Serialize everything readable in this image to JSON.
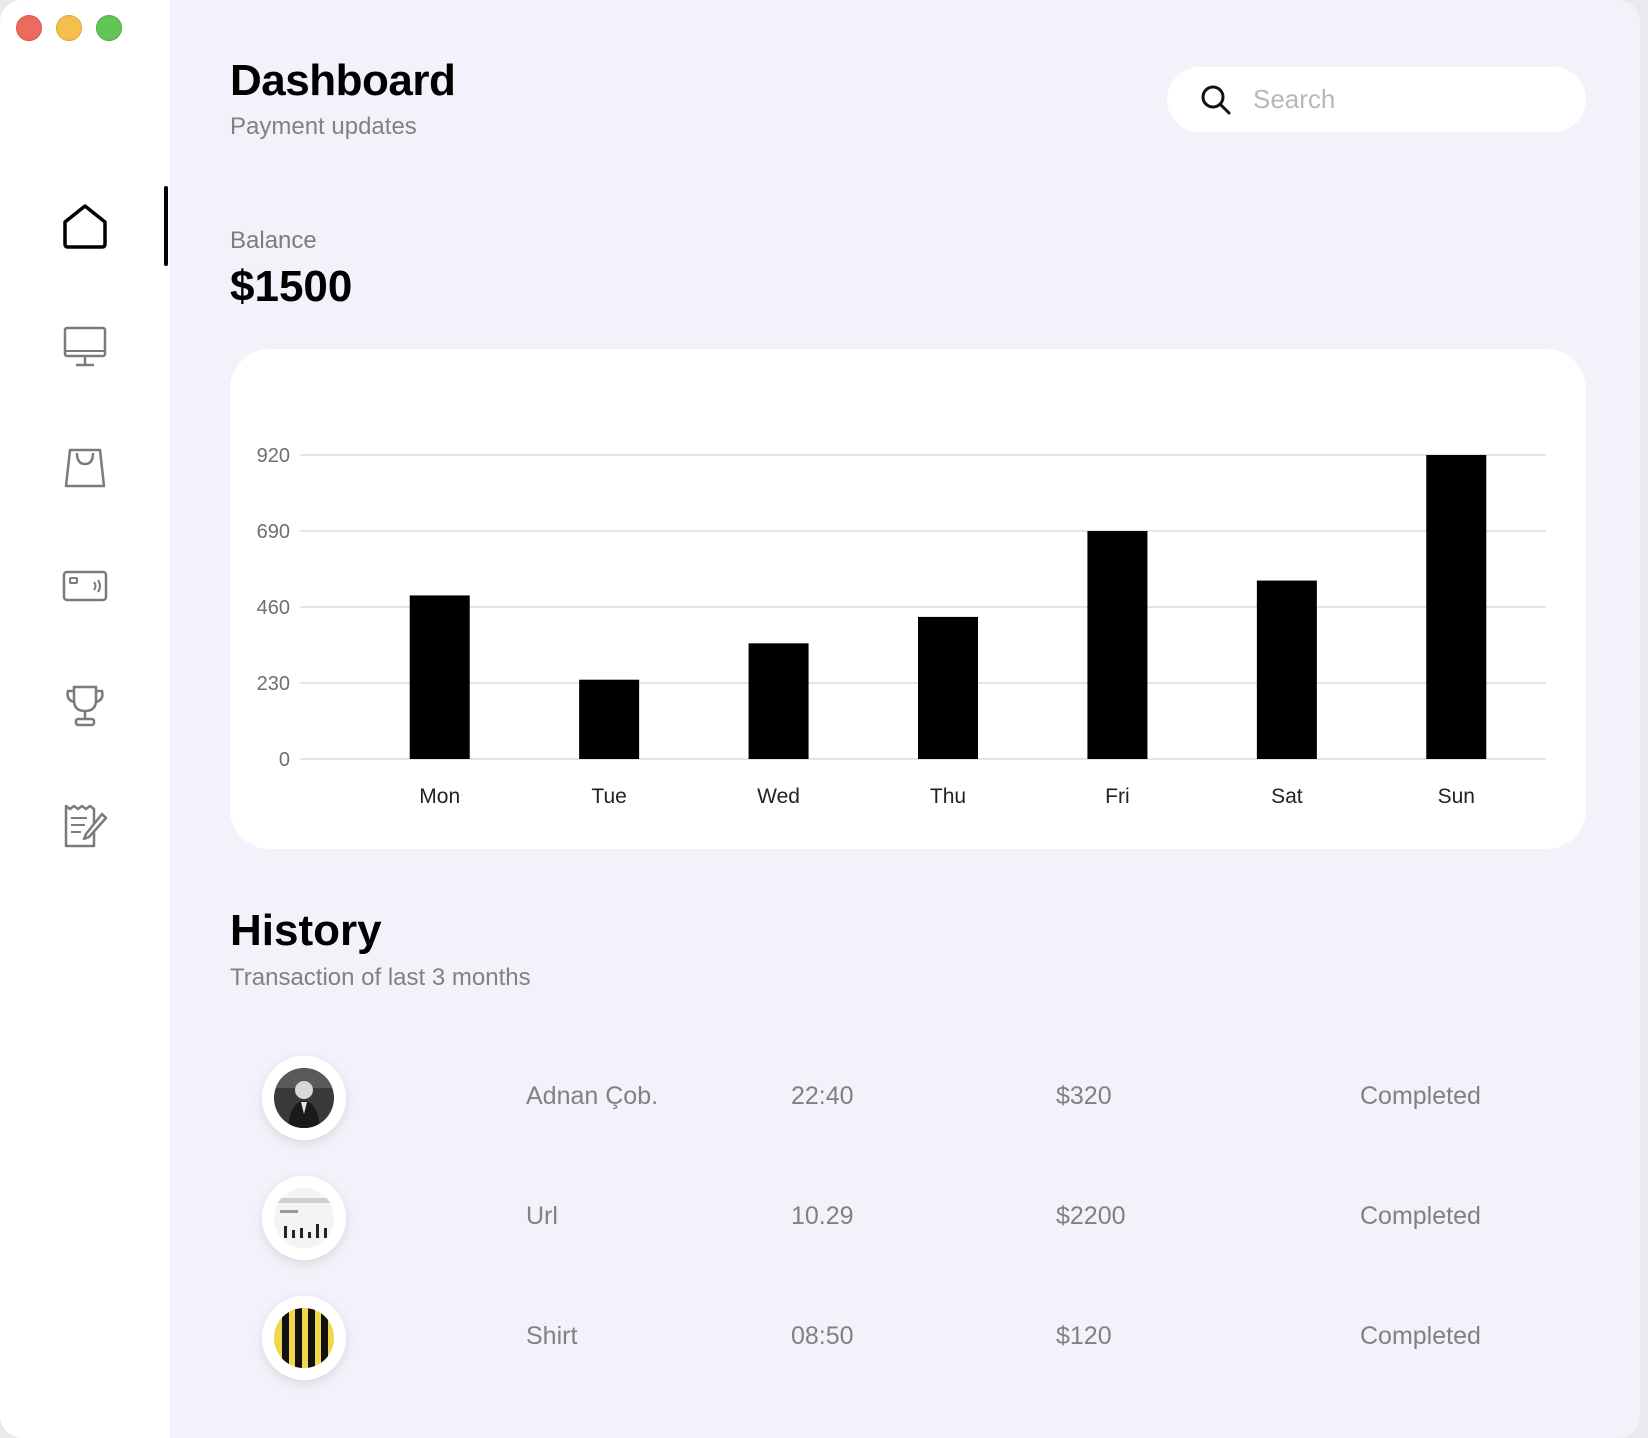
{
  "header": {
    "title": "Dashboard",
    "subtitle": "Payment updates"
  },
  "search": {
    "placeholder": "Search"
  },
  "sidebar": {
    "items": [
      {
        "icon": "home-icon",
        "active": true
      },
      {
        "icon": "monitor-icon",
        "active": false
      },
      {
        "icon": "shopping-bag-icon",
        "active": false
      },
      {
        "icon": "card-icon",
        "active": false
      },
      {
        "icon": "trophy-icon",
        "active": false
      },
      {
        "icon": "notes-icon",
        "active": false
      }
    ]
  },
  "balance": {
    "label": "Balance",
    "value": "$1500"
  },
  "chart_data": {
    "type": "bar",
    "categories": [
      "Mon",
      "Tue",
      "Wed",
      "Thu",
      "Fri",
      "Sat",
      "Sun"
    ],
    "values": [
      495,
      240,
      350,
      430,
      690,
      540,
      920
    ],
    "yticks": [
      0,
      230,
      460,
      690,
      920
    ],
    "ylim": [
      0,
      920
    ],
    "grid": true,
    "bar_color": "#000000"
  },
  "history": {
    "title": "History",
    "subtitle": "Transaction of last 3 months",
    "transactions": [
      {
        "avatar": "person-photo",
        "name": "Adnan Çob.",
        "time": "22:40",
        "amount": "$320",
        "status": "Completed"
      },
      {
        "avatar": "chart-thumbnail",
        "name": "Url",
        "time": "10.29",
        "amount": "$2200",
        "status": "Completed"
      },
      {
        "avatar": "striped-shirt",
        "name": "Shirt",
        "time": "08:50",
        "amount": "$120",
        "status": "Completed"
      }
    ]
  }
}
